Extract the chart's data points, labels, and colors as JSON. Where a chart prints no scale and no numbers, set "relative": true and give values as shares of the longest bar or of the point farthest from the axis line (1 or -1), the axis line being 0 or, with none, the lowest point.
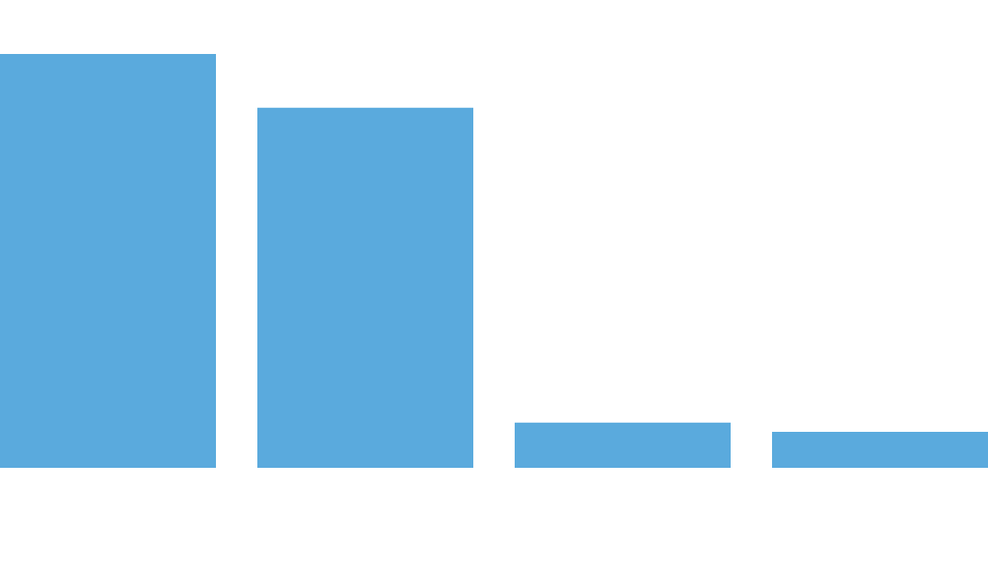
{
  "chart_data": {
    "type": "bar",
    "relative": true,
    "categories": [
      null,
      null,
      null,
      null
    ],
    "values": [
      1,
      0.87,
      0.109,
      0.087
    ],
    "color": "#5aaadd"
  }
}
